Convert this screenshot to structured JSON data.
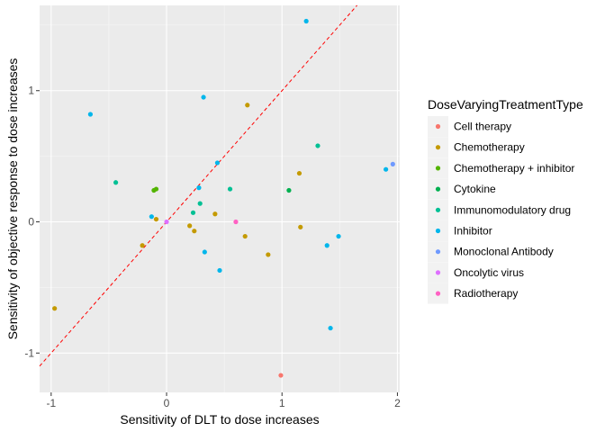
{
  "chart_data": {
    "type": "scatter",
    "title": "",
    "xlabel": "Sensitivity of DLT to dose increases",
    "ylabel": "Sensitivity of objective response to dose increases",
    "xlim": [
      -1.1,
      2.02
    ],
    "ylim": [
      -1.3,
      1.65
    ],
    "x_ticks": [
      -1,
      0,
      1,
      2
    ],
    "y_ticks": [
      -1,
      0,
      1
    ],
    "grid": true,
    "panel_background": "#ebebeb",
    "reference_line": {
      "type": "identity",
      "slope": 1,
      "intercept": 0,
      "color": "#ff0000",
      "style": "dashed"
    },
    "legend": {
      "title": "DoseVaryingTreatmentType",
      "position": "right",
      "entries": [
        {
          "label": "Cell therapy",
          "color": "#F8766D"
        },
        {
          "label": "Chemotherapy",
          "color": "#C49A00"
        },
        {
          "label": "Chemotherapy + inhibitor",
          "color": "#53B400"
        },
        {
          "label": "Cytokine",
          "color": "#00B050"
        },
        {
          "label": "Immunomodulatory drug",
          "color": "#00C094"
        },
        {
          "label": "Inhibitor",
          "color": "#00B6EB"
        },
        {
          "label": "Monoclonal Antibody",
          "color": "#6F9AFF"
        },
        {
          "label": "Oncolytic virus",
          "color": "#DE70FF"
        },
        {
          "label": "Radiotherapy",
          "color": "#FF61C3"
        }
      ]
    },
    "series": [
      {
        "name": "Cell therapy",
        "color": "#F8766D",
        "points": [
          [
            0.99,
            -1.17
          ]
        ]
      },
      {
        "name": "Chemotherapy",
        "color": "#C49A00",
        "points": [
          [
            -0.97,
            -0.66
          ],
          [
            -0.21,
            -0.18
          ],
          [
            -0.09,
            0.02
          ],
          [
            0.2,
            -0.03
          ],
          [
            0.24,
            -0.07
          ],
          [
            0.42,
            0.06
          ],
          [
            0.68,
            -0.11
          ],
          [
            0.7,
            0.89
          ],
          [
            0.88,
            -0.25
          ],
          [
            1.15,
            0.37
          ],
          [
            1.16,
            -0.04
          ]
        ]
      },
      {
        "name": "Chemotherapy + inhibitor",
        "color": "#53B400",
        "points": [
          [
            -0.11,
            0.24
          ],
          [
            -0.09,
            0.25
          ]
        ]
      },
      {
        "name": "Cytokine",
        "color": "#00B050",
        "points": [
          [
            1.06,
            0.24
          ]
        ]
      },
      {
        "name": "Immunomodulatory drug",
        "color": "#00C094",
        "points": [
          [
            -0.44,
            0.3
          ],
          [
            0.23,
            0.07
          ],
          [
            0.29,
            0.14
          ],
          [
            0.55,
            0.25
          ],
          [
            1.31,
            0.58
          ]
        ]
      },
      {
        "name": "Inhibitor",
        "color": "#00B6EB",
        "points": [
          [
            -0.66,
            0.82
          ],
          [
            -0.13,
            0.04
          ],
          [
            0.28,
            0.26
          ],
          [
            0.32,
            0.95
          ],
          [
            0.33,
            -0.23
          ],
          [
            0.44,
            0.45
          ],
          [
            0.46,
            -0.37
          ],
          [
            1.21,
            1.53
          ],
          [
            1.39,
            -0.18
          ],
          [
            1.42,
            -0.81
          ],
          [
            1.49,
            -0.11
          ],
          [
            1.9,
            0.4
          ]
        ]
      },
      {
        "name": "Monoclonal Antibody",
        "color": "#6F9AFF",
        "points": [
          [
            1.96,
            0.44
          ]
        ]
      },
      {
        "name": "Oncolytic virus",
        "color": "#DE70FF",
        "points": [
          [
            0.0,
            0.0
          ]
        ]
      },
      {
        "name": "Radiotherapy",
        "color": "#FF61C3",
        "points": [
          [
            0.6,
            0.0
          ]
        ]
      }
    ]
  }
}
